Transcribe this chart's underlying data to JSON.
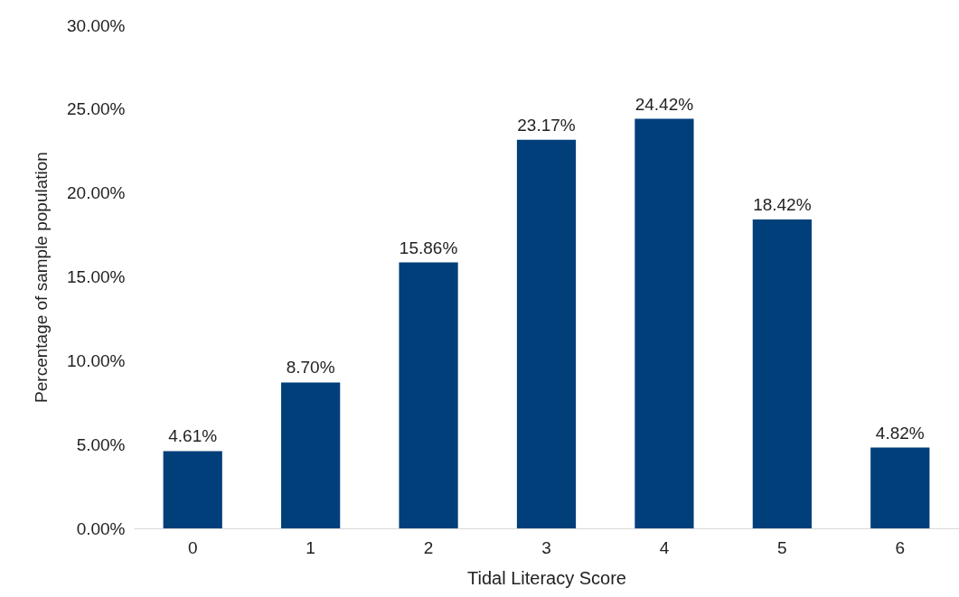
{
  "chart_data": {
    "type": "bar",
    "xlabel": "Tidal Literacy Score",
    "ylabel": "Percentage of sample population",
    "categories": [
      "0",
      "1",
      "2",
      "3",
      "4",
      "5",
      "6"
    ],
    "values": [
      4.61,
      8.7,
      15.86,
      23.17,
      24.42,
      18.42,
      4.82
    ],
    "value_labels": [
      "4.61%",
      "8.70%",
      "15.86%",
      "23.17%",
      "24.42%",
      "18.42%",
      "4.82%"
    ],
    "color": "#003f7a",
    "ylim": [
      0,
      30
    ],
    "yticks": [
      {
        "value": 0,
        "label": "0.00%"
      },
      {
        "value": 5,
        "label": "5.00%"
      },
      {
        "value": 10,
        "label": "10.00%"
      },
      {
        "value": 15,
        "label": "15.00%"
      },
      {
        "value": 20,
        "label": "20.00%"
      },
      {
        "value": 25,
        "label": "25.00%"
      },
      {
        "value": 30,
        "label": "30.00%"
      }
    ],
    "grid": false
  }
}
